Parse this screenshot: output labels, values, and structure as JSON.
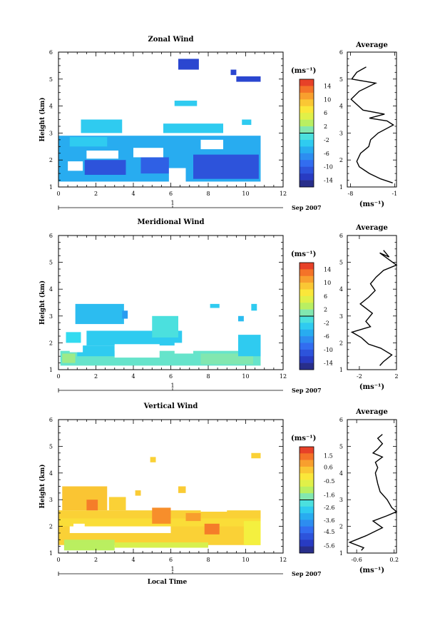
{
  "date_label": "Sep 2007",
  "day_label": "1",
  "x_axis_label": "Local Time",
  "y_axis_label": "Height (km)",
  "chart_data": [
    {
      "type": "heatmap",
      "title": "Zonal Wind",
      "xlabel": "",
      "ylabel": "Height (km)",
      "xlim": [
        0,
        12
      ],
      "ylim": [
        1,
        6
      ],
      "x_ticks": [
        "0",
        "2",
        "4",
        "6",
        "8",
        "10",
        "12"
      ],
      "y_ticks": [
        "1",
        "2",
        "3",
        "4",
        "5",
        "6"
      ],
      "colorbar": {
        "unit": "(ms⁻¹)",
        "min": -16,
        "max": 16,
        "tick_values": [
          14,
          10,
          6,
          2,
          -2,
          -6,
          -10,
          -14
        ],
        "tick_labels": [
          "14",
          "10",
          "6",
          "2",
          "-2",
          "-6",
          "-10",
          "-14"
        ]
      },
      "regions": [
        {
          "x": [
            0.0,
            10.8
          ],
          "y": [
            1.2,
            2.9
          ],
          "value": -5
        },
        {
          "x": [
            1.4,
            3.6
          ],
          "y": [
            1.45,
            2.0
          ],
          "value": -11
        },
        {
          "x": [
            4.4,
            5.9
          ],
          "y": [
            1.5,
            2.1
          ],
          "value": -10
        },
        {
          "x": [
            7.2,
            10.7
          ],
          "y": [
            1.3,
            2.2
          ],
          "value": -11
        },
        {
          "x": [
            0.6,
            2.6
          ],
          "y": [
            2.5,
            2.85
          ],
          "value": -3
        },
        {
          "x": [
            1.2,
            3.4
          ],
          "y": [
            3.0,
            3.5
          ],
          "value": -3
        },
        {
          "x": [
            5.6,
            8.8
          ],
          "y": [
            3.0,
            3.35
          ],
          "value": -3
        },
        {
          "x": [
            9.8,
            10.3
          ],
          "y": [
            3.3,
            3.5
          ],
          "value": -3
        },
        {
          "x": [
            6.2,
            7.4
          ],
          "y": [
            4.0,
            4.2
          ],
          "value": -3
        },
        {
          "x": [
            6.4,
            7.5
          ],
          "y": [
            5.35,
            5.75
          ],
          "value": -12
        },
        {
          "x": [
            9.5,
            10.8
          ],
          "y": [
            4.9,
            5.1
          ],
          "value": -12
        },
        {
          "x": [
            9.2,
            9.5
          ],
          "y": [
            5.15,
            5.35
          ],
          "value": -12
        }
      ],
      "holes": [
        {
          "x": [
            1.5,
            3.2
          ],
          "y": [
            2.05,
            2.35
          ]
        },
        {
          "x": [
            4.0,
            5.6
          ],
          "y": [
            2.1,
            2.45
          ]
        },
        {
          "x": [
            5.9,
            6.8
          ],
          "y": [
            1.1,
            1.7
          ]
        },
        {
          "x": [
            0.5,
            1.3
          ],
          "y": [
            1.6,
            1.95
          ]
        },
        {
          "x": [
            7.6,
            8.8
          ],
          "y": [
            2.4,
            2.75
          ]
        }
      ]
    },
    {
      "type": "line",
      "title": "Average",
      "xlabel": "(ms⁻¹)",
      "ylabel": "",
      "xlim": [
        -8.5,
        -0.7
      ],
      "ylim": [
        1,
        6
      ],
      "x_ticks": [
        -8,
        -1
      ],
      "x_tick_labels": [
        "-8",
        "-1"
      ],
      "y_ticks": [
        "1",
        "2",
        "3",
        "4",
        "5",
        "6"
      ],
      "points": [
        {
          "x": -5.5,
          "y": 5.45
        },
        {
          "x": -7.0,
          "y": 5.25
        },
        {
          "x": -7.8,
          "y": 5.0
        },
        {
          "x": -4.0,
          "y": 4.85
        },
        {
          "x": -6.6,
          "y": 4.55
        },
        {
          "x": -7.9,
          "y": 4.25
        },
        {
          "x": -6.0,
          "y": 3.85
        },
        {
          "x": -2.6,
          "y": 3.7
        },
        {
          "x": -5.0,
          "y": 3.55
        },
        {
          "x": -2.2,
          "y": 3.45
        },
        {
          "x": -1.2,
          "y": 3.3
        },
        {
          "x": -3.6,
          "y": 3.0
        },
        {
          "x": -4.8,
          "y": 2.75
        },
        {
          "x": -5.1,
          "y": 2.5
        },
        {
          "x": -6.4,
          "y": 2.25
        },
        {
          "x": -7.0,
          "y": 1.95
        },
        {
          "x": -6.6,
          "y": 1.75
        },
        {
          "x": -5.0,
          "y": 1.5
        },
        {
          "x": -3.2,
          "y": 1.3
        },
        {
          "x": -1.3,
          "y": 1.15
        }
      ]
    },
    {
      "type": "heatmap",
      "title": "Meridional Wind",
      "xlabel": "",
      "ylabel": "Height (km)",
      "xlim": [
        0,
        12
      ],
      "ylim": [
        1,
        6
      ],
      "x_ticks": [
        "0",
        "2",
        "4",
        "6",
        "8",
        "10",
        "12"
      ],
      "y_ticks": [
        "1",
        "2",
        "3",
        "4",
        "5",
        "6"
      ],
      "colorbar": {
        "unit": "(ms⁻¹)",
        "min": -16,
        "max": 16,
        "tick_values": [
          14,
          10,
          6,
          2,
          -2,
          -6,
          -10,
          -14
        ],
        "tick_labels": [
          "14",
          "10",
          "6",
          "2",
          "-2",
          "-6",
          "-10",
          "-14"
        ]
      },
      "regions": [
        {
          "x": [
            0.1,
            10.8
          ],
          "y": [
            1.15,
            1.7
          ],
          "value": 0
        },
        {
          "x": [
            1.0,
            3.0
          ],
          "y": [
            1.5,
            1.9
          ],
          "value": -3
        },
        {
          "x": [
            7.6,
            10.4
          ],
          "y": [
            1.2,
            1.6
          ],
          "value": 1
        },
        {
          "x": [
            0.2,
            0.9
          ],
          "y": [
            1.25,
            1.6
          ],
          "value": 2
        },
        {
          "x": [
            1.5,
            6.6
          ],
          "y": [
            1.9,
            2.45
          ],
          "value": -3
        },
        {
          "x": [
            0.4,
            1.2
          ],
          "y": [
            2.0,
            2.4
          ],
          "value": -2
        },
        {
          "x": [
            9.6,
            10.8
          ],
          "y": [
            1.5,
            2.3
          ],
          "value": -3
        },
        {
          "x": [
            0.9,
            3.5
          ],
          "y": [
            2.7,
            3.45
          ],
          "value": -4
        },
        {
          "x": [
            3.4,
            3.7
          ],
          "y": [
            2.9,
            3.2
          ],
          "value": -6
        },
        {
          "x": [
            5.0,
            6.4
          ],
          "y": [
            2.2,
            3.0
          ],
          "value": -1
        },
        {
          "x": [
            8.1,
            8.6
          ],
          "y": [
            3.3,
            3.45
          ],
          "value": -3
        },
        {
          "x": [
            10.3,
            10.6
          ],
          "y": [
            3.2,
            3.45
          ],
          "value": -3
        },
        {
          "x": [
            9.6,
            9.9
          ],
          "y": [
            2.8,
            3.0
          ],
          "value": -4
        }
      ],
      "holes": [
        {
          "x": [
            3.0,
            5.4
          ],
          "y": [
            1.45,
            1.95
          ]
        },
        {
          "x": [
            6.2,
            7.2
          ],
          "y": [
            1.6,
            2.0
          ]
        },
        {
          "x": [
            0.6,
            1.3
          ],
          "y": [
            1.65,
            1.95
          ]
        }
      ]
    },
    {
      "type": "line",
      "title": "Average",
      "xlabel": "(ms⁻¹)",
      "ylabel": "",
      "xlim": [
        -3.3,
        2.0
      ],
      "ylim": [
        1,
        6
      ],
      "x_ticks": [
        -2,
        2
      ],
      "x_tick_labels": [
        "-2",
        "2"
      ],
      "y_ticks": [
        "1",
        "2",
        "3",
        "4",
        "5",
        "6"
      ],
      "points": [
        {
          "x": 0.6,
          "y": 5.45
        },
        {
          "x": 1.2,
          "y": 5.2
        },
        {
          "x": 0.2,
          "y": 5.35
        },
        {
          "x": 2.0,
          "y": 4.9
        },
        {
          "x": 0.6,
          "y": 4.7
        },
        {
          "x": -0.2,
          "y": 4.45
        },
        {
          "x": -0.8,
          "y": 4.2
        },
        {
          "x": -0.3,
          "y": 3.95
        },
        {
          "x": -1.0,
          "y": 3.7
        },
        {
          "x": -1.9,
          "y": 3.45
        },
        {
          "x": -0.6,
          "y": 3.1
        },
        {
          "x": -1.3,
          "y": 2.8
        },
        {
          "x": -0.8,
          "y": 2.6
        },
        {
          "x": -2.8,
          "y": 2.4
        },
        {
          "x": -1.8,
          "y": 2.2
        },
        {
          "x": -1.0,
          "y": 1.95
        },
        {
          "x": 0.3,
          "y": 1.8
        },
        {
          "x": 1.5,
          "y": 1.55
        },
        {
          "x": 0.6,
          "y": 1.3
        },
        {
          "x": 0.2,
          "y": 1.15
        }
      ]
    },
    {
      "type": "heatmap",
      "title": "Vertical Wind",
      "xlabel": "Local Time",
      "ylabel": "Height (km)",
      "xlim": [
        0,
        12
      ],
      "ylim": [
        1,
        6
      ],
      "x_ticks": [
        "0",
        "2",
        "4",
        "6",
        "8",
        "10",
        "12"
      ],
      "y_ticks": [
        "1",
        "2",
        "3",
        "4",
        "5",
        "6"
      ],
      "colorbar": {
        "unit": "(ms⁻¹)",
        "min": -6.2,
        "max": 2.2,
        "tick_values": [
          1.5,
          0.6,
          -0.5,
          -1.6,
          -2.6,
          -3.6,
          -4.5,
          -5.6
        ],
        "tick_labels": [
          "1.5",
          "0.6",
          "-0.5",
          "-1.6",
          "-2.6",
          "-3.6",
          "-4.5",
          "-5.6"
        ]
      },
      "regions": [
        {
          "x": [
            0.0,
            10.8
          ],
          "y": [
            1.3,
            2.6
          ],
          "value": 0.2
        },
        {
          "x": [
            0.0,
            10.8
          ],
          "y": [
            2.0,
            2.3
          ],
          "value": 0.0
        },
        {
          "x": [
            0.3,
            3.0
          ],
          "y": [
            1.1,
            1.5
          ],
          "value": -1.2
        },
        {
          "x": [
            3.0,
            8.0
          ],
          "y": [
            1.2,
            1.4
          ],
          "value": -0.8
        },
        {
          "x": [
            0.2,
            2.6
          ],
          "y": [
            2.6,
            3.5
          ],
          "value": 0.4
        },
        {
          "x": [
            2.7,
            3.6
          ],
          "y": [
            2.6,
            3.1
          ],
          "value": 0.2
        },
        {
          "x": [
            1.5,
            2.1
          ],
          "y": [
            2.6,
            3.0
          ],
          "value": 1.3
        },
        {
          "x": [
            5.0,
            6.0
          ],
          "y": [
            2.1,
            2.7
          ],
          "value": 1.1
        },
        {
          "x": [
            7.8,
            8.6
          ],
          "y": [
            1.7,
            2.1
          ],
          "value": 1.3
        },
        {
          "x": [
            6.8,
            7.6
          ],
          "y": [
            2.2,
            2.5
          ],
          "value": 0.9
        },
        {
          "x": [
            9.9,
            10.8
          ],
          "y": [
            1.3,
            2.2
          ],
          "value": -0.4
        },
        {
          "x": [
            4.1,
            4.4
          ],
          "y": [
            3.15,
            3.35
          ],
          "value": 0.3
        },
        {
          "x": [
            6.4,
            6.8
          ],
          "y": [
            3.25,
            3.5
          ],
          "value": 0.3
        },
        {
          "x": [
            10.3,
            10.8
          ],
          "y": [
            4.55,
            4.75
          ],
          "value": 0.2
        },
        {
          "x": [
            4.9,
            5.2
          ],
          "y": [
            4.4,
            4.6
          ],
          "value": 0.2
        }
      ],
      "holes": [
        {
          "x": [
            0.6,
            6.0
          ],
          "y": [
            1.75,
            2.0
          ]
        },
        {
          "x": [
            0.8,
            1.4
          ],
          "y": [
            1.9,
            2.1
          ]
        },
        {
          "x": [
            7.6,
            9.0
          ],
          "y": [
            2.55,
            2.7
          ]
        }
      ]
    },
    {
      "type": "line",
      "title": "Average",
      "xlabel": "(ms⁻¹)",
      "ylabel": "",
      "xlim": [
        -0.8,
        0.25
      ],
      "ylim": [
        1,
        6
      ],
      "x_ticks": [
        -0.6,
        0.2
      ],
      "x_tick_labels": [
        "-0.6",
        "0.2"
      ],
      "y_ticks": [
        "1",
        "2",
        "3",
        "4",
        "5",
        "6"
      ],
      "points": [
        {
          "x": -0.05,
          "y": 5.45
        },
        {
          "x": -0.15,
          "y": 5.3
        },
        {
          "x": -0.05,
          "y": 5.1
        },
        {
          "x": -0.15,
          "y": 4.9
        },
        {
          "x": -0.25,
          "y": 4.75
        },
        {
          "x": -0.05,
          "y": 4.6
        },
        {
          "x": -0.2,
          "y": 4.4
        },
        {
          "x": -0.15,
          "y": 4.2
        },
        {
          "x": -0.2,
          "y": 4.0
        },
        {
          "x": -0.15,
          "y": 3.6
        },
        {
          "x": -0.1,
          "y": 3.3
        },
        {
          "x": 0.05,
          "y": 3.0
        },
        {
          "x": 0.15,
          "y": 2.7
        },
        {
          "x": 0.25,
          "y": 2.55
        },
        {
          "x": 0.05,
          "y": 2.4
        },
        {
          "x": -0.25,
          "y": 2.2
        },
        {
          "x": -0.05,
          "y": 1.95
        },
        {
          "x": -0.4,
          "y": 1.65
        },
        {
          "x": -0.75,
          "y": 1.4
        },
        {
          "x": -0.45,
          "y": 1.2
        },
        {
          "x": -0.5,
          "y": 1.1
        }
      ]
    }
  ]
}
